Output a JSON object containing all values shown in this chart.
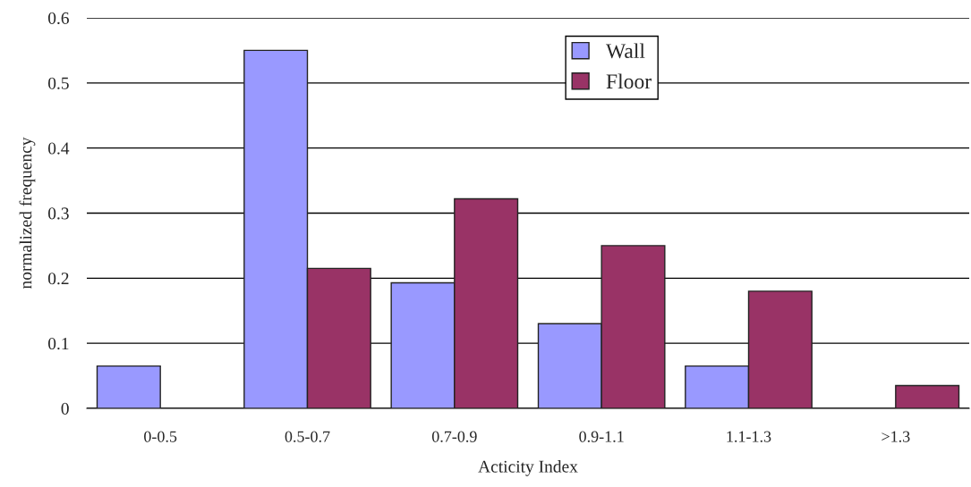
{
  "chart_data": {
    "type": "bar",
    "xlabel": "Acticity Index",
    "ylabel": "normalized frequency",
    "categories": [
      "0-0.5",
      "0.5-0.7",
      "0.7-0.9",
      "0.9-1.1",
      "1.1-1.3",
      ">1.3"
    ],
    "series": [
      {
        "name": "Wall",
        "color": "#9999ff",
        "values": [
          0.065,
          0.55,
          0.193,
          0.13,
          0.065,
          null
        ]
      },
      {
        "name": "Floor",
        "color": "#993366",
        "values": [
          null,
          0.215,
          0.322,
          0.25,
          0.18,
          0.035
        ]
      }
    ],
    "ylim": [
      0,
      0.6
    ],
    "yticks": [
      {
        "value": 0,
        "label": "0"
      },
      0.1,
      0.2,
      0.3,
      0.4,
      0.5,
      0.6
    ],
    "grid": "y",
    "legend": "top"
  }
}
